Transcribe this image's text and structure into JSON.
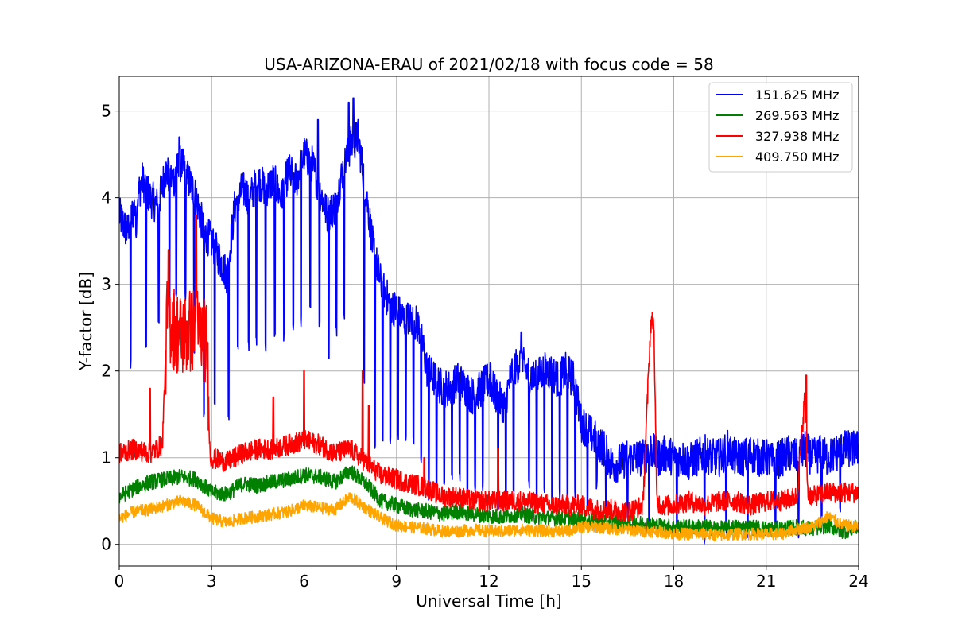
{
  "chart_data": {
    "type": "line",
    "title": "USA-ARIZONA-ERAU of 2021/02/18 with focus code = 58",
    "xlabel": "Universal Time [h]",
    "ylabel": "Y-factor [dB]",
    "xlim": [
      0,
      24
    ],
    "ylim": [
      -0.25,
      5.4
    ],
    "xticks": [
      0,
      3,
      6,
      9,
      12,
      15,
      18,
      21,
      24
    ],
    "yticks": [
      0,
      1,
      2,
      3,
      4,
      5
    ],
    "grid": true,
    "legend_position": "top-right",
    "series": [
      {
        "name": "151.625 MHz",
        "color": "#0000ff",
        "x": [
          0,
          0.25,
          0.5,
          0.75,
          1.0,
          1.25,
          1.5,
          1.75,
          2.0,
          2.25,
          2.5,
          2.75,
          3.0,
          3.25,
          3.5,
          3.75,
          4.0,
          4.25,
          4.5,
          4.75,
          5.0,
          5.25,
          5.5,
          5.75,
          6.0,
          6.25,
          6.5,
          6.75,
          7.0,
          7.25,
          7.5,
          7.75,
          8.0,
          8.25,
          8.5,
          8.75,
          9.0,
          9.25,
          9.5,
          9.75,
          10.0,
          10.25,
          10.5,
          10.75,
          11.0,
          11.25,
          11.5,
          11.75,
          12.0,
          12.25,
          12.5,
          12.75,
          13.0,
          13.25,
          13.5,
          13.75,
          14.0,
          14.25,
          14.5,
          14.75,
          15.0,
          15.25,
          15.5,
          15.75,
          16.0,
          16.25,
          16.5,
          16.75,
          17.0,
          17.25,
          17.5,
          17.75,
          18.0,
          18.25,
          18.5,
          18.75,
          19.0,
          19.25,
          19.5,
          19.75,
          20.0,
          20.25,
          20.5,
          20.75,
          21.0,
          21.25,
          21.5,
          21.75,
          22.0,
          22.25,
          22.5,
          22.75,
          23.0,
          23.25,
          23.5,
          23.75,
          24.0
        ],
        "y": [
          3.8,
          3.6,
          3.9,
          4.2,
          4.0,
          3.9,
          4.3,
          4.2,
          4.4,
          4.2,
          4.0,
          3.6,
          3.5,
          3.3,
          3.1,
          3.9,
          4.1,
          4.0,
          4.2,
          4.1,
          4.2,
          4.0,
          4.3,
          4.2,
          4.5,
          4.4,
          4.1,
          3.8,
          3.9,
          4.3,
          4.6,
          4.7,
          4.1,
          3.4,
          3.0,
          2.8,
          2.7,
          2.6,
          2.6,
          2.5,
          2.0,
          1.9,
          1.8,
          1.8,
          1.9,
          1.8,
          1.7,
          1.8,
          1.9,
          1.7,
          1.6,
          2.0,
          2.1,
          2.0,
          1.9,
          2.0,
          2.0,
          1.9,
          2.0,
          1.9,
          1.4,
          1.3,
          1.2,
          1.1,
          0.9,
          0.95,
          1.0,
          1.0,
          1.0,
          1.1,
          1.0,
          1.05,
          1.0,
          1.0,
          0.95,
          1.0,
          1.05,
          1.0,
          1.0,
          1.1,
          1.0,
          1.0,
          1.05,
          1.0,
          1.0,
          0.95,
          1.0,
          1.05,
          1.0,
          1.1,
          1.0,
          1.05,
          1.0,
          1.05,
          1.1,
          1.1,
          1.1
        ],
        "dips": [
          [
            0.37,
            2.0
          ],
          [
            0.55,
            3.5
          ],
          [
            0.87,
            2.2
          ],
          [
            1.28,
            2.5
          ],
          [
            1.63,
            2.6
          ],
          [
            1.85,
            2.8
          ],
          [
            2.15,
            2.8
          ],
          [
            2.43,
            2.2
          ],
          [
            2.75,
            1.4
          ],
          [
            3.1,
            1.6
          ],
          [
            3.55,
            1.4
          ],
          [
            3.85,
            2.2
          ],
          [
            4.2,
            2.2
          ],
          [
            4.45,
            2.3
          ],
          [
            4.75,
            2.2
          ],
          [
            5.05,
            2.3
          ],
          [
            5.35,
            2.3
          ],
          [
            5.65,
            2.4
          ],
          [
            5.9,
            2.5
          ],
          [
            6.2,
            2.7
          ],
          [
            6.5,
            2.5
          ],
          [
            6.8,
            2.1
          ],
          [
            7.05,
            2.4
          ],
          [
            7.3,
            2.6
          ],
          [
            7.95,
            1.8
          ],
          [
            8.3,
            1.1
          ],
          [
            8.55,
            1.1
          ],
          [
            8.8,
            1.1
          ],
          [
            9.05,
            1.2
          ],
          [
            9.3,
            1.2
          ],
          [
            9.55,
            1.1
          ],
          [
            9.8,
            0.9
          ],
          [
            10.05,
            0.5
          ],
          [
            10.3,
            0.6
          ],
          [
            10.55,
            0.6
          ],
          [
            10.8,
            0.7
          ],
          [
            11.05,
            0.7
          ],
          [
            11.3,
            0.6
          ],
          [
            11.55,
            0.6
          ],
          [
            11.8,
            0.6
          ],
          [
            12.05,
            0.5
          ],
          [
            12.3,
            0.4
          ],
          [
            12.55,
            0.3
          ],
          [
            12.8,
            0.6
          ],
          [
            13.05,
            0.7
          ],
          [
            13.3,
            0.6
          ],
          [
            13.55,
            0.5
          ],
          [
            13.8,
            0.6
          ],
          [
            14.05,
            0.4
          ],
          [
            14.3,
            0.5
          ],
          [
            14.55,
            0.4
          ],
          [
            14.8,
            0.5
          ],
          [
            15.2,
            0.4
          ],
          [
            15.5,
            0.6
          ],
          [
            15.8,
            0.3
          ],
          [
            16.5,
            0.2
          ],
          [
            17.2,
            0.1
          ],
          [
            18.1,
            0.1
          ],
          [
            19.0,
            0.0
          ],
          [
            19.7,
            0.1
          ],
          [
            20.4,
            0.05
          ],
          [
            21.3,
            0.1
          ],
          [
            22.05,
            0.0
          ],
          [
            22.8,
            0.2
          ],
          [
            23.4,
            0.3
          ]
        ],
        "peaks": [
          [
            1.95,
            4.7
          ],
          [
            6.45,
            4.9
          ],
          [
            7.6,
            5.15
          ],
          [
            7.45,
            5.1
          ],
          [
            12.05,
            2.1
          ],
          [
            13.05,
            2.45
          ]
        ]
      },
      {
        "name": "269.563 MHz",
        "color": "#008000",
        "x": [
          0,
          0.5,
          1.0,
          1.5,
          2.0,
          2.5,
          3.0,
          3.5,
          4.0,
          4.5,
          5.0,
          5.5,
          6.0,
          6.5,
          7.0,
          7.5,
          8.0,
          8.5,
          9.0,
          9.5,
          10.0,
          10.5,
          11.0,
          11.5,
          12.0,
          12.5,
          13.0,
          13.5,
          14.0,
          14.5,
          15.0,
          15.5,
          16.0,
          16.5,
          17.0,
          17.5,
          18.0,
          18.5,
          19.0,
          19.5,
          20.0,
          20.5,
          21.0,
          21.5,
          22.0,
          22.5,
          23.0,
          23.5,
          24.0
        ],
        "y": [
          0.55,
          0.65,
          0.72,
          0.75,
          0.78,
          0.75,
          0.6,
          0.58,
          0.7,
          0.68,
          0.72,
          0.75,
          0.8,
          0.78,
          0.72,
          0.85,
          0.7,
          0.5,
          0.45,
          0.4,
          0.38,
          0.35,
          0.38,
          0.35,
          0.33,
          0.32,
          0.35,
          0.32,
          0.3,
          0.3,
          0.28,
          0.27,
          0.25,
          0.25,
          0.24,
          0.22,
          0.2,
          0.2,
          0.2,
          0.18,
          0.2,
          0.2,
          0.18,
          0.18,
          0.2,
          0.18,
          0.22,
          0.15,
          0.2
        ]
      },
      {
        "name": "327.938 MHz",
        "color": "#ff0000",
        "x": [
          0,
          0.5,
          1.0,
          1.4,
          1.55,
          2.0,
          2.5,
          2.85,
          2.95,
          3.5,
          4.0,
          4.5,
          5.0,
          5.5,
          6.0,
          6.5,
          7.0,
          7.5,
          8.0,
          8.5,
          9.0,
          9.5,
          10.0,
          10.5,
          11.0,
          11.5,
          12.0,
          12.5,
          13.0,
          13.5,
          14.0,
          14.5,
          15.0,
          15.5,
          16.0,
          16.5,
          17.0,
          17.25,
          17.35,
          17.45,
          17.6,
          18.0,
          18.5,
          19.0,
          19.5,
          20.0,
          20.5,
          21.0,
          21.5,
          22.0,
          22.25,
          22.35,
          22.5,
          23.0,
          23.5,
          24.0
        ],
        "y": [
          1.05,
          1.1,
          1.05,
          1.15,
          2.6,
          2.4,
          2.5,
          2.3,
          1.0,
          0.95,
          1.05,
          1.1,
          1.1,
          1.15,
          1.2,
          1.15,
          1.05,
          1.1,
          0.95,
          0.8,
          0.75,
          0.7,
          0.65,
          0.55,
          0.55,
          0.5,
          0.5,
          0.5,
          0.5,
          0.48,
          0.45,
          0.45,
          0.45,
          0.4,
          0.4,
          0.38,
          0.45,
          2.55,
          2.6,
          0.5,
          0.45,
          0.45,
          0.5,
          0.45,
          0.5,
          0.5,
          0.45,
          0.5,
          0.5,
          0.55,
          1.7,
          0.6,
          0.55,
          0.6,
          0.6,
          0.6
        ],
        "spikes": [
          [
            1.0,
            1.8
          ],
          [
            1.6,
            3.4
          ],
          [
            2.5,
            3.8
          ],
          [
            5.0,
            1.7
          ],
          [
            6.0,
            2.0
          ],
          [
            7.9,
            2.0
          ],
          [
            8.1,
            1.6
          ],
          [
            9.9,
            1.0
          ],
          [
            12.3,
            1.1
          ],
          [
            22.3,
            1.95
          ]
        ]
      },
      {
        "name": "409.750 MHz",
        "color": "#ffa500",
        "x": [
          0,
          0.5,
          1.0,
          1.5,
          2.0,
          2.5,
          3.0,
          3.5,
          4.0,
          4.5,
          5.0,
          5.5,
          6.0,
          6.5,
          7.0,
          7.5,
          8.0,
          8.5,
          9.0,
          9.5,
          10.0,
          10.5,
          11.0,
          11.5,
          12.0,
          12.5,
          13.0,
          13.5,
          14.0,
          14.5,
          15.0,
          15.5,
          16.0,
          16.5,
          17.0,
          17.5,
          18.0,
          18.5,
          19.0,
          19.5,
          20.0,
          20.5,
          21.0,
          21.5,
          22.0,
          22.5,
          23.0,
          23.5,
          24.0
        ],
        "y": [
          0.3,
          0.38,
          0.4,
          0.45,
          0.5,
          0.45,
          0.3,
          0.25,
          0.3,
          0.32,
          0.35,
          0.38,
          0.45,
          0.42,
          0.4,
          0.55,
          0.42,
          0.3,
          0.22,
          0.2,
          0.18,
          0.15,
          0.15,
          0.17,
          0.15,
          0.15,
          0.17,
          0.16,
          0.15,
          0.15,
          0.2,
          0.2,
          0.18,
          0.17,
          0.15,
          0.15,
          0.12,
          0.12,
          0.12,
          0.1,
          0.12,
          0.12,
          0.12,
          0.12,
          0.18,
          0.2,
          0.32,
          0.22,
          0.2
        ]
      }
    ]
  }
}
